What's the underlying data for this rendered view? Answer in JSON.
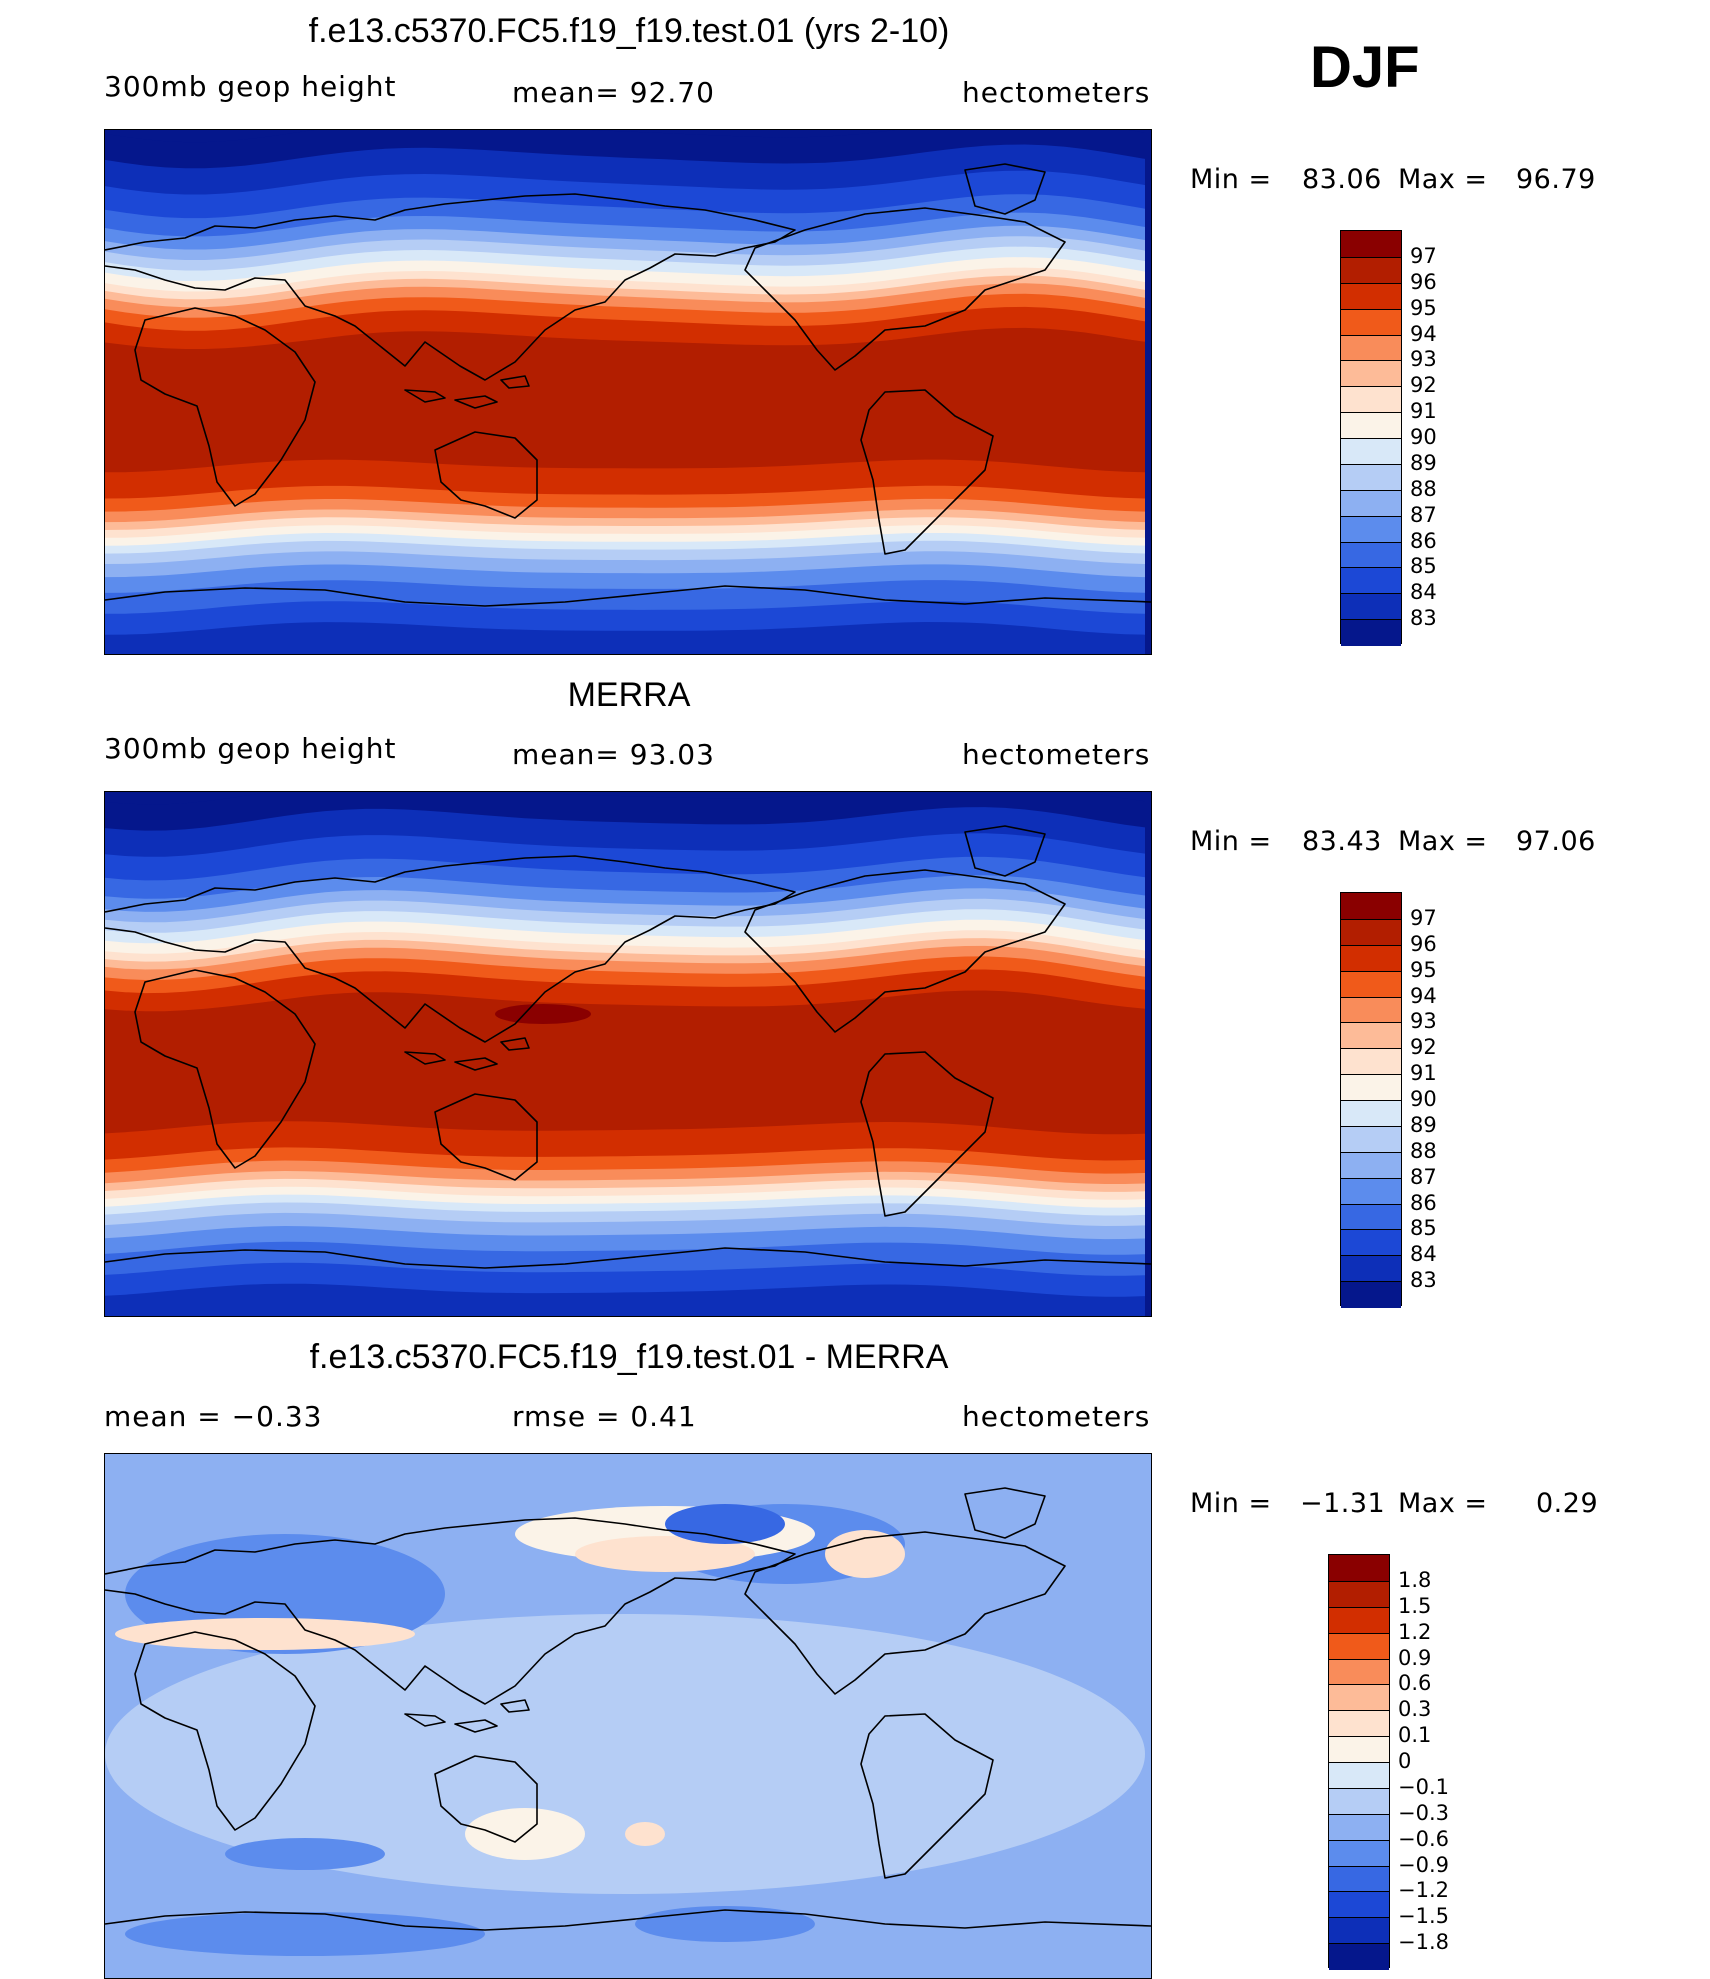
{
  "season": "DJF",
  "colors": {
    "abs": [
      "#8a0000",
      "#b21e00",
      "#d22e00",
      "#f05a1a",
      "#f98c5a",
      "#fdbb98",
      "#fee2cf",
      "#fbf3e8",
      "#d8e8f8",
      "#b5cdf5",
      "#8db0f2",
      "#5c8ced",
      "#3768e3",
      "#1c48d6",
      "#0d2fb8",
      "#05178c"
    ],
    "diff": [
      "#8a0000",
      "#b21e00",
      "#d22e00",
      "#f05a1a",
      "#f98c5a",
      "#fdbb98",
      "#fee2cf",
      "#fbf3e8",
      "#d8e8f8",
      "#b5cdf5",
      "#8db0f2",
      "#5c8ced",
      "#3768e3",
      "#1c48d6",
      "#0d2fb8",
      "#05178c"
    ]
  },
  "panels": [
    {
      "title": "f.e13.c5370.FC5.f19_f19.test.01 (yrs 2-10)",
      "left_label": "300mb  geop  height",
      "center_label": "mean=   92.70",
      "right_label": "hectometers",
      "min_label": "Min  =",
      "min_value": "83.06",
      "max_label": "Max  =",
      "max_value": "96.79",
      "colorbar_levels": [
        "97",
        "96",
        "95",
        "94",
        "93",
        "92",
        "91",
        "90",
        "89",
        "88",
        "87",
        "86",
        "85",
        "84",
        "83"
      ],
      "map_icon": "world-map-contour-icon"
    },
    {
      "title": "MERRA",
      "left_label": "300mb  geop  height",
      "center_label": "mean=   93.03",
      "right_label": "hectometers",
      "min_label": "Min  =",
      "min_value": "83.43",
      "max_label": "Max  =",
      "max_value": "97.06",
      "colorbar_levels": [
        "97",
        "96",
        "95",
        "94",
        "93",
        "92",
        "91",
        "90",
        "89",
        "88",
        "87",
        "86",
        "85",
        "84",
        "83"
      ],
      "map_icon": "world-map-contour-icon"
    },
    {
      "title": "f.e13.c5370.FC5.f19_f19.test.01 - MERRA",
      "left_label": "mean  =    −0.33",
      "center_label": "rmse  =     0.41",
      "right_label": "hectometers",
      "min_label": "Min  =",
      "min_value": "−1.31",
      "max_label": "Max  =",
      "max_value": "0.29",
      "colorbar_levels": [
        "1.8",
        "1.5",
        "1.2",
        "0.9",
        "0.6",
        "0.3",
        "0.1",
        "0",
        "−0.1",
        "−0.3",
        "−0.6",
        "−0.9",
        "−1.2",
        "−1.5",
        "−1.8"
      ],
      "map_icon": "world-map-difference-contour-icon"
    }
  ]
}
